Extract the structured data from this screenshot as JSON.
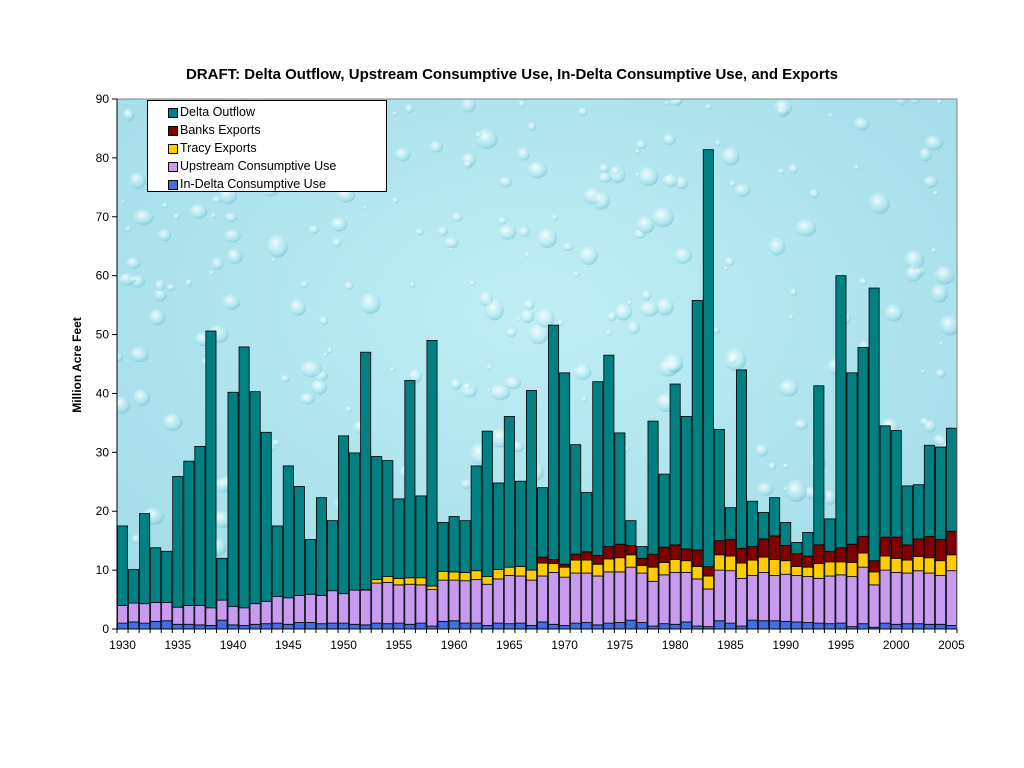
{
  "chart_data": {
    "type": "bar",
    "stacked": true,
    "title": "DRAFT: Delta Outflow, Upstream Consumptive Use, In-Delta Consumptive Use, and Exports",
    "xlabel": "",
    "ylabel": "Million Acre Feet",
    "ylim": [
      0,
      90
    ],
    "yticks": [
      0,
      10,
      20,
      30,
      40,
      50,
      60,
      70,
      80,
      90
    ],
    "xticks": [
      1930,
      1935,
      1940,
      1945,
      1950,
      1955,
      1960,
      1965,
      1970,
      1975,
      1980,
      1985,
      1990,
      1995,
      2000,
      2005
    ],
    "grid": false,
    "legend_position": "top-left",
    "background": "water droplets",
    "categories": [
      1930,
      1931,
      1932,
      1933,
      1934,
      1935,
      1936,
      1937,
      1938,
      1939,
      1940,
      1941,
      1942,
      1943,
      1944,
      1945,
      1946,
      1947,
      1948,
      1949,
      1950,
      1951,
      1952,
      1953,
      1954,
      1955,
      1956,
      1957,
      1958,
      1959,
      1960,
      1961,
      1962,
      1963,
      1964,
      1965,
      1966,
      1967,
      1968,
      1969,
      1970,
      1971,
      1972,
      1973,
      1974,
      1975,
      1976,
      1977,
      1978,
      1979,
      1980,
      1981,
      1982,
      1983,
      1984,
      1985,
      1986,
      1987,
      1988,
      1989,
      1990,
      1991,
      1992,
      1993,
      1994,
      1995,
      1996,
      1997,
      1998,
      1999,
      2000,
      2001,
      2002,
      2003,
      2004,
      2005
    ],
    "series": [
      {
        "name": "In-Delta Consumptive Use",
        "color": "#3f6fe6",
        "values": [
          1.0,
          1.2,
          1.0,
          1.3,
          1.4,
          0.8,
          0.8,
          0.7,
          0.6,
          1.5,
          0.7,
          0.6,
          0.8,
          0.9,
          1.0,
          0.8,
          1.1,
          1.1,
          0.9,
          1.0,
          1.0,
          0.8,
          0.7,
          1.0,
          0.9,
          1.0,
          0.8,
          1.0,
          0.5,
          1.3,
          1.4,
          1.0,
          1.0,
          0.6,
          1.0,
          0.9,
          1.0,
          0.6,
          1.2,
          0.8,
          0.6,
          1.0,
          1.1,
          0.7,
          1.0,
          1.1,
          1.5,
          1.1,
          0.5,
          0.9,
          0.8,
          1.2,
          0.5,
          0.4,
          1.4,
          1.0,
          0.5,
          1.5,
          1.4,
          1.4,
          1.3,
          1.2,
          1.1,
          1.0,
          0.9,
          1.0,
          0.4,
          0.9,
          0.3,
          1.0,
          0.8,
          0.9,
          0.9,
          0.8,
          0.8,
          0.6
        ]
      },
      {
        "name": "Upstream Consumptive Use",
        "color": "#c89af0",
        "values": [
          3.0,
          3.2,
          3.3,
          3.2,
          3.1,
          2.9,
          3.2,
          3.3,
          3.0,
          3.4,
          3.1,
          3.0,
          3.5,
          3.8,
          4.5,
          4.5,
          4.6,
          4.8,
          4.8,
          5.5,
          5.0,
          5.8,
          5.9,
          6.8,
          7.0,
          6.5,
          6.8,
          6.5,
          6.2,
          7.0,
          6.9,
          7.2,
          7.4,
          7.0,
          7.5,
          8.2,
          8.0,
          7.7,
          7.8,
          8.8,
          8.2,
          8.5,
          8.4,
          8.3,
          8.7,
          8.6,
          9.0,
          8.4,
          7.6,
          8.3,
          8.8,
          8.4,
          8.0,
          6.4,
          8.6,
          8.9,
          8.1,
          7.6,
          8.2,
          7.7,
          8.0,
          7.9,
          7.8,
          7.6,
          8.1,
          8.2,
          8.5,
          9.6,
          7.2,
          9.0,
          8.8,
          8.6,
          9.0,
          8.7,
          8.3,
          9.3
        ]
      },
      {
        "name": "Tracy Exports",
        "color": "#ffcc00",
        "values": [
          0,
          0,
          0,
          0,
          0,
          0,
          0,
          0,
          0,
          0,
          0,
          0,
          0,
          0,
          0,
          0,
          0,
          0,
          0,
          0,
          0,
          0,
          0.1,
          0.6,
          1.0,
          1.1,
          1.1,
          1.2,
          0.6,
          1.5,
          1.4,
          1.4,
          1.5,
          1.3,
          1.6,
          1.4,
          1.6,
          1.7,
          2.2,
          1.5,
          1.7,
          2.2,
          2.2,
          2.0,
          2.2,
          2.4,
          2.1,
          1.3,
          2.4,
          2.1,
          2.2,
          2.0,
          2.1,
          2.2,
          2.6,
          2.5,
          2.6,
          2.6,
          2.6,
          2.7,
          2.3,
          1.5,
          1.6,
          2.5,
          2.4,
          2.2,
          2.4,
          2.4,
          2.2,
          2.4,
          2.4,
          2.2,
          2.4,
          2.6,
          2.5,
          2.7
        ]
      },
      {
        "name": "Banks Exports",
        "color": "#800000",
        "values": [
          0,
          0,
          0,
          0,
          0,
          0,
          0,
          0,
          0,
          0,
          0,
          0,
          0,
          0,
          0,
          0,
          0,
          0,
          0,
          0,
          0,
          0,
          0,
          0,
          0,
          0,
          0,
          0,
          0,
          0,
          0,
          0,
          0,
          0,
          0,
          0,
          0,
          0,
          1.0,
          0.7,
          0.5,
          1.0,
          1.4,
          1.5,
          2.1,
          2.3,
          1.6,
          1.2,
          2.2,
          2.6,
          2.5,
          2.0,
          2.8,
          1.6,
          2.4,
          2.8,
          2.5,
          2.3,
          3.1,
          4.0,
          2.6,
          2.2,
          1.9,
          3.2,
          1.8,
          2.4,
          3.1,
          2.8,
          1.9,
          3.2,
          3.6,
          2.6,
          3.0,
          3.6,
          3.6,
          4.0
        ]
      },
      {
        "name": "Delta Outflow",
        "color": "#008080",
        "values": [
          13.5,
          5.7,
          15.3,
          9.3,
          8.7,
          22.2,
          24.5,
          27.0,
          47.0,
          7.1,
          36.4,
          44.3,
          36.0,
          28.7,
          12.0,
          22.4,
          18.5,
          9.3,
          16.6,
          11.9,
          26.8,
          23.3,
          40.3,
          20.9,
          19.7,
          13.5,
          33.5,
          13.9,
          41.7,
          8.3,
          9.4,
          8.8,
          17.8,
          24.7,
          14.7,
          25.6,
          14.5,
          30.5,
          11.8,
          39.8,
          32.5,
          18.6,
          10.1,
          29.5,
          32.5,
          18.9,
          4.2,
          2.0,
          22.6,
          12.4,
          27.3,
          22.5,
          42.4,
          70.8,
          18.9,
          5.4,
          30.3,
          7.7,
          4.5,
          6.5,
          3.9,
          1.9,
          4.0,
          27.0,
          5.5,
          46.2,
          29.1,
          32.1,
          46.3,
          18.9,
          18.1,
          10.0,
          9.2,
          15.5,
          15.7,
          17.5
        ]
      }
    ]
  }
}
